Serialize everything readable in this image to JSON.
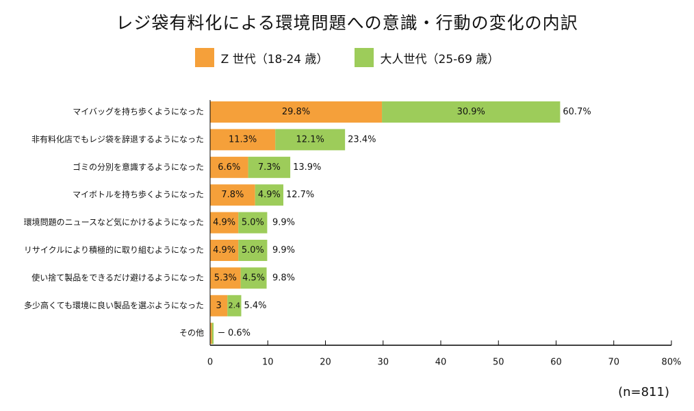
{
  "chart_data": {
    "type": "bar",
    "orientation": "horizontal",
    "stacked": true,
    "title": "レジ袋有料化による環境問題への意識・行動の変化の内訳",
    "categories": [
      "マイバッグを持ち歩くようになった",
      "非有料化店でもレジ袋を辞退するようになった",
      "ゴミの分別を意識するようになった",
      "マイボトルを持ち歩くようになった",
      "環境問題のニュースなど気にかけるようになった",
      "リサイクルにより積極的に取り組むようになった",
      "使い捨て製品をできるだけ避けるようになった",
      "多少高くても環境に良い製品を選ぶようになった",
      "その他"
    ],
    "series": [
      {
        "name": "Z 世代（18-24 歳）",
        "color": "#f5a03a",
        "values": [
          29.8,
          11.3,
          6.6,
          7.8,
          4.9,
          4.9,
          5.3,
          3,
          0.3
        ],
        "labels": [
          "29.8%",
          "11.3%",
          "6.6%",
          "7.8%",
          "4.9%",
          "4.9%",
          "5.3%",
          "3",
          ""
        ]
      },
      {
        "name": "大人世代（25-69 歳）",
        "color": "#9dcc5a",
        "values": [
          30.9,
          12.1,
          7.3,
          4.9,
          5.0,
          5.0,
          4.5,
          2.4,
          0.3
        ],
        "labels": [
          "30.9%",
          "12.1%",
          "7.3%",
          "4.9%",
          "5.0%",
          "5.0%",
          "4.5%",
          "2.4",
          ""
        ]
      }
    ],
    "totals": [
      "60.7%",
      "23.4%",
      "13.9%",
      "12.7%",
      "9.9%",
      "9.9%",
      "9.8%",
      "5.4%",
      "0.6%"
    ],
    "other_marker": "ー",
    "xlim": [
      0,
      80
    ],
    "xticks": [
      "0",
      "10",
      "20",
      "30",
      "40",
      "50",
      "60",
      "70",
      "80%"
    ],
    "grid": false,
    "legend_position": "top-center"
  },
  "note": "(n=811)"
}
